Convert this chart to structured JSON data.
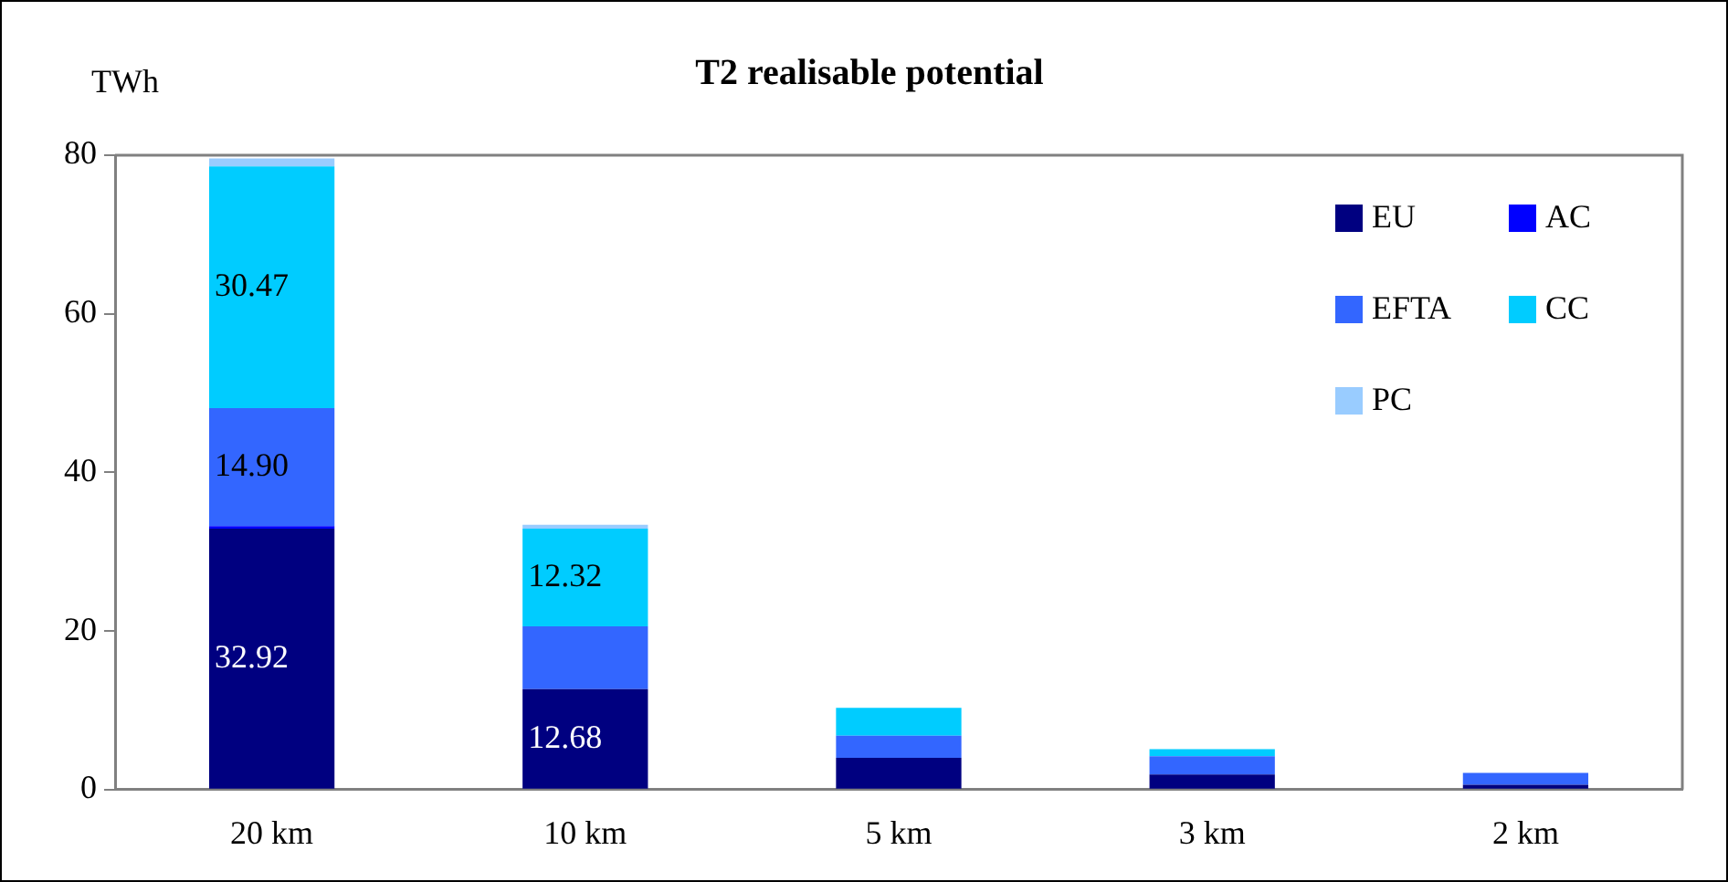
{
  "chart_data": {
    "type": "bar",
    "title": "T2 realisable potential",
    "ylabel": "TWh",
    "categories": [
      "20 km",
      "10 km",
      "5 km",
      "3 km",
      "2 km"
    ],
    "stacked": true,
    "ylim": [
      0,
      80
    ],
    "yticks": [
      0,
      20,
      40,
      60,
      80
    ],
    "grid": false,
    "legend": "top right",
    "series": [
      {
        "name": "EU",
        "color": "#000080",
        "values": [
          32.92,
          12.68,
          4.0,
          1.9,
          0.6
        ],
        "value_labels": [
          "32.92",
          "12.68",
          null,
          null,
          null
        ]
      },
      {
        "name": "AC",
        "color": "#0000ff",
        "values": [
          0.3,
          0,
          0,
          0,
          0
        ]
      },
      {
        "name": "EFTA",
        "color": "#3366ff",
        "values": [
          14.9,
          7.9,
          2.8,
          2.3,
          1.5
        ],
        "value_labels": [
          "14.90",
          null,
          null,
          null,
          null
        ]
      },
      {
        "name": "CC",
        "color": "#00ccff",
        "values": [
          30.47,
          12.32,
          3.5,
          0.9,
          0
        ],
        "value_labels": [
          "30.47",
          "12.32",
          null,
          null,
          null
        ]
      },
      {
        "name": "PC",
        "color": "#99ccff",
        "values": [
          1.0,
          0.5,
          0,
          0,
          0
        ]
      }
    ]
  }
}
